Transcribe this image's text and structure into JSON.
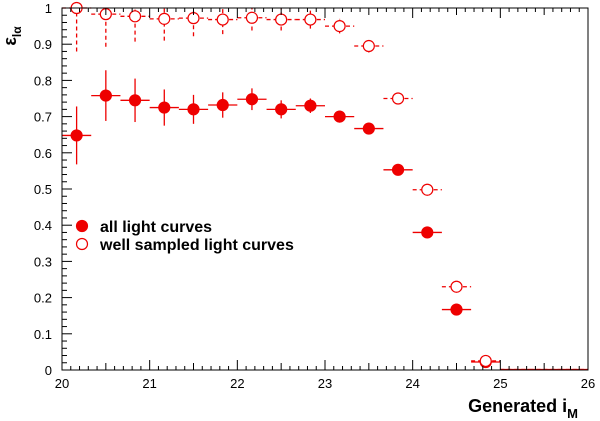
{
  "chart_data": {
    "type": "scatter",
    "xlabel": "Generated i",
    "xlabel_sub": "M",
    "ylabel": "ε",
    "ylabel_sub": "lα",
    "xlim": [
      20,
      26
    ],
    "ylim": [
      0,
      1
    ],
    "xticks": [
      "20",
      "21",
      "22",
      "23",
      "24",
      "25",
      "26"
    ],
    "yticks": [
      "0",
      "0.1",
      "0.2",
      "0.3",
      "0.4",
      "0.5",
      "0.6",
      "0.7",
      "0.8",
      "0.9",
      "1"
    ],
    "xerr": 0.16667,
    "grid": false,
    "legend_position": "center-left",
    "colors": {
      "series": "#ee0000"
    },
    "series": [
      {
        "name": "all light curves",
        "marker": "filled-circle",
        "x": [
          20.1667,
          20.5,
          20.8333,
          21.1667,
          21.5,
          21.8333,
          22.1667,
          22.5,
          22.8333,
          23.1667,
          23.5,
          23.8333,
          24.1667,
          24.5,
          24.8333,
          25.1667,
          25.5,
          25.8333
        ],
        "y": [
          0.648,
          0.758,
          0.745,
          0.725,
          0.72,
          0.732,
          0.748,
          0.72,
          0.73,
          0.7,
          0.667,
          0.553,
          0.38,
          0.167,
          0.022,
          0,
          0,
          0
        ],
        "yerr": [
          0.08,
          0.07,
          0.06,
          0.05,
          0.04,
          0.035,
          0.03,
          0.025,
          0.02,
          0.015,
          0.012,
          0.012,
          0.012,
          0.012,
          0.008,
          0,
          0,
          0
        ]
      },
      {
        "name": "well sampled light curves",
        "marker": "open-circle",
        "x": [
          20.1667,
          20.5,
          20.8333,
          21.1667,
          21.5,
          21.8333,
          22.1667,
          22.5,
          22.8333,
          23.1667,
          23.5,
          23.8333,
          24.1667,
          24.5,
          24.8333,
          25.1667,
          25.5,
          25.8333
        ],
        "y": [
          1.0,
          0.983,
          0.977,
          0.97,
          0.972,
          0.968,
          0.973,
          0.968,
          0.968,
          0.95,
          0.895,
          0.75,
          0.498,
          0.23,
          0.025,
          0,
          0,
          0
        ],
        "yerr": [
          0.12,
          0.09,
          0.07,
          0.06,
          0.05,
          0.04,
          0.035,
          0.03,
          0.025,
          0.02,
          0.018,
          0.015,
          0.012,
          0.012,
          0.008,
          0,
          0,
          0
        ]
      }
    ]
  }
}
